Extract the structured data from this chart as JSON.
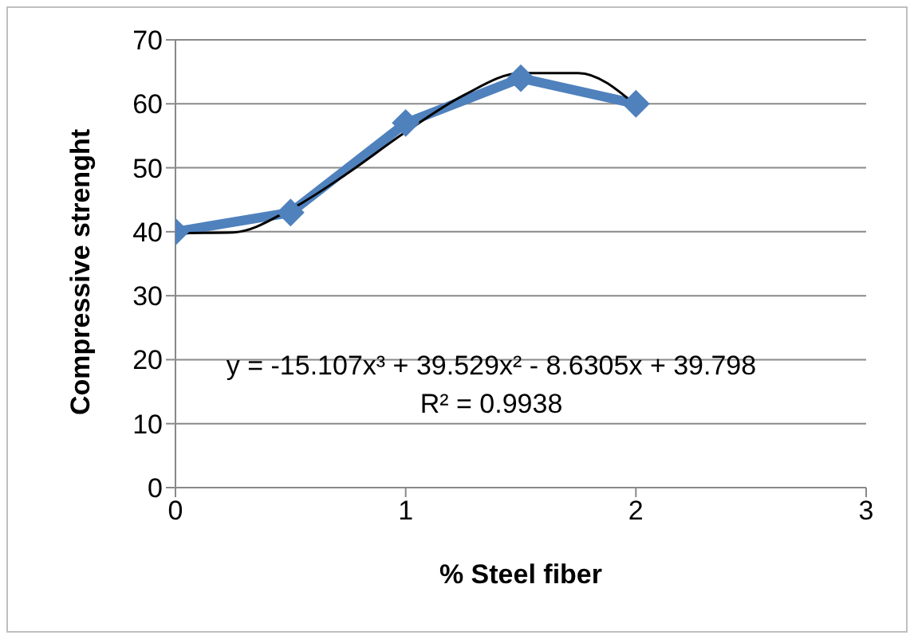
{
  "chart_data": {
    "type": "line",
    "xlabel": "% Steel fiber",
    "ylabel": "Compressive strenght",
    "xlim": [
      0,
      3
    ],
    "xticks": [
      0,
      1,
      2,
      3
    ],
    "ylim": [
      0,
      70
    ],
    "yticks": [
      0,
      10,
      20,
      30,
      40,
      50,
      60,
      70
    ],
    "grid": "y",
    "legend": false,
    "line_style": "solid",
    "series": [
      {
        "color": "#4f81bd",
        "marker": "diamond",
        "x": [
          0,
          0.5,
          1,
          1.5,
          2
        ],
        "values": [
          40,
          43,
          57,
          64,
          60
        ]
      },
      {
        "color": "#000000",
        "marker": "none",
        "x": [
          0,
          0.25,
          0.5,
          0.75,
          1,
          1.25,
          1.5,
          1.75,
          2
        ],
        "values": [
          39.8,
          39.9,
          43.5,
          49.2,
          55.6,
          61.3,
          64.8,
          64.8,
          59.8
        ]
      }
    ],
    "annotations": [
      "y = -15.107x³ + 39.529x² - 8.6305x + 39.798",
      "R² = 0.9938"
    ]
  }
}
